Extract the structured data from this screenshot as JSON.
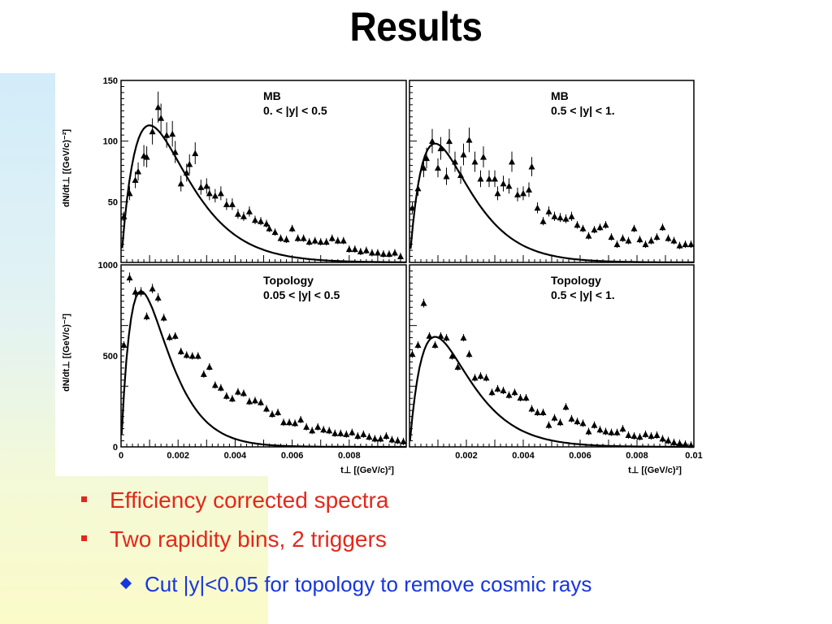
{
  "slide": {
    "title": "Results",
    "bullets": [
      "Efficiency corrected spectra",
      "Two rapidity bins, 2 triggers"
    ],
    "sub_bullets": [
      "Cut |y|<0.05 for topology to remove cosmic rays"
    ]
  },
  "colors": {
    "bullet": "#e3281b",
    "sub_bullet": "#1736e0"
  },
  "chart_data": [
    {
      "type": "scatter",
      "panel": "top-left",
      "title": [
        "MB",
        "0. < |y| < 0.5"
      ],
      "ylabel": "dN/dt⊥ [(GeV/c)⁻²]",
      "xlim": [
        0,
        0.01
      ],
      "ylim": [
        0,
        150
      ],
      "yticks": [
        50,
        100,
        150
      ],
      "xticks": [],
      "points": [
        [
          0.0001,
          38
        ],
        [
          0.0003,
          57
        ],
        [
          0.0005,
          68
        ],
        [
          0.0006,
          75
        ],
        [
          0.0008,
          88
        ],
        [
          0.0009,
          87
        ],
        [
          0.0011,
          108
        ],
        [
          0.0013,
          128
        ],
        [
          0.0014,
          119
        ],
        [
          0.0016,
          105
        ],
        [
          0.0018,
          106
        ],
        [
          0.0019,
          91
        ],
        [
          0.0021,
          65
        ],
        [
          0.0023,
          74
        ],
        [
          0.0024,
          81
        ],
        [
          0.0026,
          90
        ],
        [
          0.0028,
          62
        ],
        [
          0.003,
          63
        ],
        [
          0.0031,
          57
        ],
        [
          0.0033,
          55
        ],
        [
          0.0035,
          57
        ],
        [
          0.0037,
          48
        ],
        [
          0.0039,
          48
        ],
        [
          0.0041,
          40
        ],
        [
          0.0043,
          38
        ],
        [
          0.0045,
          42
        ],
        [
          0.0047,
          35
        ],
        [
          0.0049,
          34
        ],
        [
          0.0051,
          32
        ],
        [
          0.0052,
          28
        ],
        [
          0.0054,
          25
        ],
        [
          0.0056,
          20
        ],
        [
          0.0058,
          19
        ],
        [
          0.006,
          28
        ],
        [
          0.0062,
          20
        ],
        [
          0.0064,
          20
        ],
        [
          0.0066,
          17
        ],
        [
          0.0068,
          18
        ],
        [
          0.007,
          17
        ],
        [
          0.0072,
          17
        ],
        [
          0.0074,
          20
        ],
        [
          0.0076,
          18
        ],
        [
          0.0078,
          18
        ],
        [
          0.008,
          11
        ],
        [
          0.0082,
          11
        ],
        [
          0.0084,
          9
        ],
        [
          0.0086,
          10
        ],
        [
          0.0088,
          8
        ],
        [
          0.009,
          8
        ],
        [
          0.0092,
          7
        ],
        [
          0.0094,
          7
        ],
        [
          0.0096,
          8
        ],
        [
          0.0098,
          5
        ]
      ],
      "fit_peak": {
        "x": 0.001,
        "y": 113
      }
    },
    {
      "type": "scatter",
      "panel": "top-right",
      "title": [
        "MB",
        "0.5 < |y| < 1."
      ],
      "xlim": [
        0,
        0.01
      ],
      "ylim": [
        0,
        150
      ],
      "yticks": [],
      "xticks": [],
      "points": [
        [
          0.0001,
          45
        ],
        [
          0.0003,
          61
        ],
        [
          0.0005,
          78
        ],
        [
          0.0006,
          86
        ],
        [
          0.0008,
          100
        ],
        [
          0.001,
          78
        ],
        [
          0.0011,
          94
        ],
        [
          0.0013,
          71
        ],
        [
          0.0014,
          100
        ],
        [
          0.0016,
          83
        ],
        [
          0.0018,
          72
        ],
        [
          0.0019,
          89
        ],
        [
          0.0021,
          101
        ],
        [
          0.0023,
          83
        ],
        [
          0.0025,
          69
        ],
        [
          0.0026,
          87
        ],
        [
          0.0028,
          69
        ],
        [
          0.003,
          69
        ],
        [
          0.0031,
          57
        ],
        [
          0.0033,
          65
        ],
        [
          0.0035,
          63
        ],
        [
          0.0036,
          83
        ],
        [
          0.0038,
          56
        ],
        [
          0.004,
          57
        ],
        [
          0.0042,
          60
        ],
        [
          0.0043,
          79
        ],
        [
          0.0045,
          45
        ],
        [
          0.0047,
          34
        ],
        [
          0.0049,
          42
        ],
        [
          0.0051,
          38
        ],
        [
          0.0053,
          37
        ],
        [
          0.0055,
          36
        ],
        [
          0.0057,
          38
        ],
        [
          0.0059,
          31
        ],
        [
          0.0061,
          28
        ],
        [
          0.0063,
          22
        ],
        [
          0.0065,
          27
        ],
        [
          0.0067,
          29
        ],
        [
          0.0069,
          31
        ],
        [
          0.0071,
          21
        ],
        [
          0.0073,
          15
        ],
        [
          0.0075,
          20
        ],
        [
          0.0077,
          18
        ],
        [
          0.0079,
          28
        ],
        [
          0.0081,
          19
        ],
        [
          0.0083,
          15
        ],
        [
          0.0085,
          18
        ],
        [
          0.0087,
          21
        ],
        [
          0.0089,
          29
        ],
        [
          0.0091,
          20
        ],
        [
          0.0093,
          18
        ],
        [
          0.0095,
          14
        ],
        [
          0.0097,
          15
        ],
        [
          0.0099,
          15
        ]
      ],
      "fit_peak": {
        "x": 0.0009,
        "y": 98
      }
    },
    {
      "type": "scatter",
      "panel": "bottom-left",
      "title": [
        "Topology",
        "0.05 < |y| < 0.5"
      ],
      "ylabel": "dN/dt⊥ [(GeV/c)⁻²]",
      "xlabel": "t⊥ [(GeV/c)²]",
      "xlim": [
        0,
        0.01
      ],
      "ylim": [
        0,
        1000
      ],
      "yticks": [
        0,
        500,
        1000
      ],
      "xticks": [
        0,
        0.002,
        0.004,
        0.006,
        0.008
      ],
      "points": [
        [
          0.0001,
          560
        ],
        [
          0.0003,
          930
        ],
        [
          0.0005,
          852
        ],
        [
          0.0007,
          852
        ],
        [
          0.0009,
          717
        ],
        [
          0.0011,
          870
        ],
        [
          0.0013,
          820
        ],
        [
          0.0015,
          710
        ],
        [
          0.0017,
          603
        ],
        [
          0.0019,
          610
        ],
        [
          0.0021,
          525
        ],
        [
          0.0023,
          505
        ],
        [
          0.0025,
          500
        ],
        [
          0.0027,
          500
        ],
        [
          0.0029,
          400
        ],
        [
          0.0031,
          440
        ],
        [
          0.0033,
          340
        ],
        [
          0.0035,
          325
        ],
        [
          0.0037,
          280
        ],
        [
          0.0039,
          265
        ],
        [
          0.0041,
          303
        ],
        [
          0.0043,
          295
        ],
        [
          0.0045,
          250
        ],
        [
          0.0047,
          255
        ],
        [
          0.0049,
          245
        ],
        [
          0.0051,
          210
        ],
        [
          0.0053,
          180
        ],
        [
          0.0055,
          190
        ],
        [
          0.0057,
          135
        ],
        [
          0.0059,
          135
        ],
        [
          0.0061,
          130
        ],
        [
          0.0063,
          150
        ],
        [
          0.0065,
          110
        ],
        [
          0.0067,
          90
        ],
        [
          0.0069,
          110
        ],
        [
          0.0071,
          95
        ],
        [
          0.0073,
          90
        ],
        [
          0.0075,
          75
        ],
        [
          0.0077,
          75
        ],
        [
          0.0079,
          70
        ],
        [
          0.0081,
          80
        ],
        [
          0.0083,
          60
        ],
        [
          0.0085,
          70
        ],
        [
          0.0087,
          55
        ],
        [
          0.0089,
          45
        ],
        [
          0.0091,
          45
        ],
        [
          0.0093,
          60
        ],
        [
          0.0095,
          40
        ],
        [
          0.0097,
          35
        ],
        [
          0.0099,
          30
        ]
      ],
      "fit_peak": {
        "x": 0.0007,
        "y": 855
      }
    },
    {
      "type": "scatter",
      "panel": "bottom-right",
      "title": [
        "Topology",
        "0.5 < |y| < 1."
      ],
      "xlabel": "t⊥ [(GeV/c)²]",
      "xlim": [
        0,
        0.01
      ],
      "ylim": [
        0,
        1000
      ],
      "yticks": [],
      "xticks": [
        0.002,
        0.004,
        0.006,
        0.008,
        0.01
      ],
      "points": [
        [
          0.0001,
          510
        ],
        [
          0.0003,
          560
        ],
        [
          0.0005,
          790
        ],
        [
          0.0007,
          610
        ],
        [
          0.0009,
          560
        ],
        [
          0.0011,
          610
        ],
        [
          0.0013,
          600
        ],
        [
          0.0015,
          500
        ],
        [
          0.0017,
          440
        ],
        [
          0.0019,
          600
        ],
        [
          0.0021,
          510
        ],
        [
          0.0023,
          380
        ],
        [
          0.0025,
          390
        ],
        [
          0.0027,
          380
        ],
        [
          0.0029,
          300
        ],
        [
          0.0031,
          320
        ],
        [
          0.0033,
          310
        ],
        [
          0.0035,
          285
        ],
        [
          0.0037,
          300
        ],
        [
          0.0039,
          270
        ],
        [
          0.0041,
          270
        ],
        [
          0.0043,
          210
        ],
        [
          0.0045,
          190
        ],
        [
          0.0047,
          190
        ],
        [
          0.0049,
          120
        ],
        [
          0.0051,
          160
        ],
        [
          0.0053,
          135
        ],
        [
          0.0055,
          220
        ],
        [
          0.0057,
          155
        ],
        [
          0.0059,
          140
        ],
        [
          0.0061,
          130
        ],
        [
          0.0063,
          85
        ],
        [
          0.0065,
          120
        ],
        [
          0.0067,
          95
        ],
        [
          0.0069,
          85
        ],
        [
          0.0071,
          80
        ],
        [
          0.0073,
          80
        ],
        [
          0.0075,
          100
        ],
        [
          0.0077,
          65
        ],
        [
          0.0079,
          60
        ],
        [
          0.0081,
          55
        ],
        [
          0.0083,
          70
        ],
        [
          0.0085,
          60
        ],
        [
          0.0087,
          65
        ],
        [
          0.0089,
          45
        ],
        [
          0.0091,
          35
        ],
        [
          0.0093,
          25
        ],
        [
          0.0095,
          20
        ],
        [
          0.0097,
          15
        ],
        [
          0.0099,
          10
        ]
      ],
      "fit_peak": {
        "x": 0.0009,
        "y": 605
      }
    }
  ]
}
